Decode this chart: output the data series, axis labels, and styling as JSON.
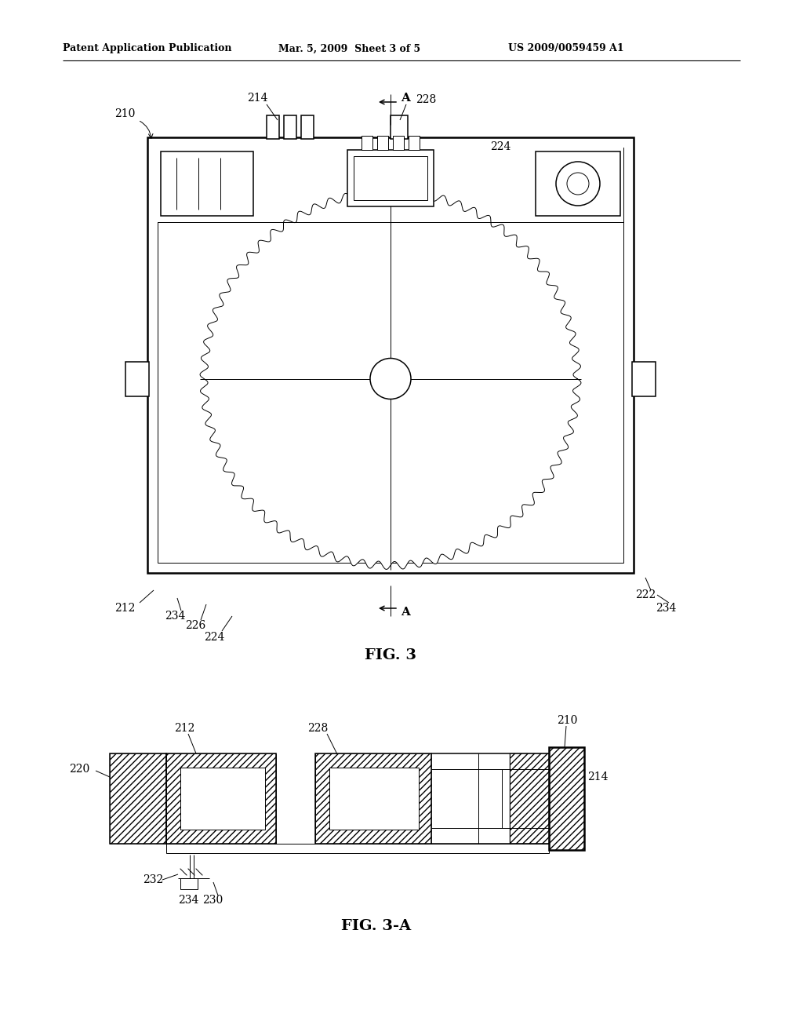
{
  "bg_color": "#ffffff",
  "line_color": "#000000",
  "header_text": "Patent Application Publication",
  "header_date": "Mar. 5, 2009  Sheet 3 of 5",
  "header_patent": "US 2009/0059459 A1",
  "fig3_caption": "FIG. 3",
  "fig3a_caption": "FIG. 3-A"
}
